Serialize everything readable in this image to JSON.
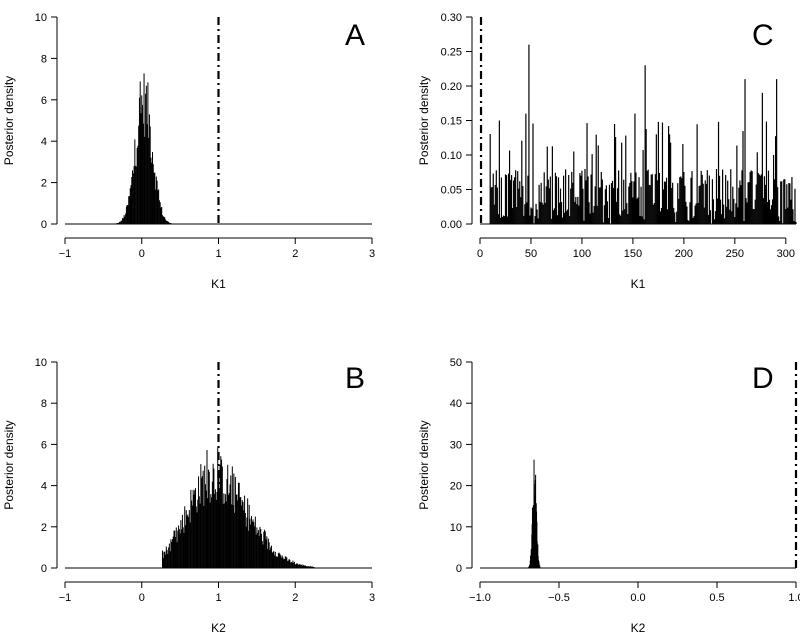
{
  "chart_data": [
    {
      "panel": "A",
      "type": "histogram",
      "xlabel": "K1",
      "ylabel": "Posterior density",
      "xlim": [
        -1,
        3
      ],
      "ylim": [
        0,
        10
      ],
      "xticks": [
        -1,
        0,
        1,
        2,
        3
      ],
      "xtick_labels": [
        "−1",
        "0",
        "1",
        "2",
        "3"
      ],
      "yticks": [
        0,
        2,
        4,
        6,
        8,
        10
      ],
      "ytick_labels": [
        "0",
        "2",
        "4",
        "6",
        "8",
        "10"
      ],
      "reference_line_x": 1,
      "line_style": "dashdot",
      "distribution": {
        "center": 0.03,
        "spread": 0.11,
        "peak": 7.6,
        "min": -0.38,
        "max": 0.38,
        "bin_width": 0.01
      }
    },
    {
      "panel": "C",
      "type": "histogram",
      "xlabel": "K1",
      "ylabel": "Posterior density",
      "xlim": [
        0,
        310
      ],
      "ylim": [
        0,
        0.3
      ],
      "xticks": [
        0,
        50,
        100,
        150,
        200,
        250,
        300
      ],
      "xtick_labels": [
        "0",
        "50",
        "100",
        "150",
        "200",
        "250",
        "300"
      ],
      "yticks": [
        0,
        0.05,
        0.1,
        0.15,
        0.2,
        0.25,
        0.3
      ],
      "ytick_labels": [
        "0.00",
        "0.05",
        "0.10",
        "0.15",
        "0.20",
        "0.25",
        "0.30"
      ],
      "reference_line_x": 1,
      "line_style": "dashdot",
      "distribution": {
        "min": 10,
        "max": 310,
        "typical": 0.05,
        "peaks": [
          [
            48,
            0.26
          ],
          [
            162,
            0.23
          ],
          [
            260,
            0.21
          ],
          [
            291,
            0.21
          ],
          [
            277,
            0.19
          ],
          [
            45,
            0.16
          ],
          [
            152,
            0.16
          ],
          [
            19,
            0.15
          ]
        ]
      }
    },
    {
      "panel": "B",
      "type": "histogram",
      "xlabel": "K2",
      "ylabel": "Posterior density",
      "xlim": [
        -1,
        3
      ],
      "ylim": [
        0,
        10
      ],
      "xticks": [
        -1,
        0,
        1,
        2,
        3
      ],
      "xtick_labels": [
        "−1",
        "0",
        "1",
        "2",
        "3"
      ],
      "yticks": [
        0,
        2,
        4,
        6,
        8,
        10
      ],
      "ytick_labels": [
        "0",
        "2",
        "4",
        "6",
        "8",
        "10"
      ],
      "reference_line_x": 1,
      "line_style": "dashdot",
      "distribution": {
        "center": 0.92,
        "spread": 0.33,
        "peak": 5.7,
        "min": 0.27,
        "max": 2.25,
        "bin_width": 0.01,
        "skew": 1.35
      }
    },
    {
      "panel": "D",
      "type": "histogram",
      "xlabel": "K2",
      "ylabel": "Posterior density",
      "xlim": [
        -1,
        1
      ],
      "ylim": [
        0,
        50
      ],
      "xticks": [
        -1,
        -0.5,
        0,
        0.5,
        1
      ],
      "xtick_labels": [
        "−1.0",
        "−0.5",
        "0.0",
        "0.5",
        "1.0"
      ],
      "yticks": [
        0,
        10,
        20,
        30,
        40,
        50
      ],
      "ytick_labels": [
        "0",
        "10",
        "20",
        "30",
        "40",
        "50"
      ],
      "reference_line_x": 1,
      "line_style": "dashdot",
      "distribution": {
        "center": -0.655,
        "spread": 0.012,
        "peak": 27.5,
        "min": -0.7,
        "max": -0.62,
        "bin_width": 0.002
      }
    }
  ]
}
